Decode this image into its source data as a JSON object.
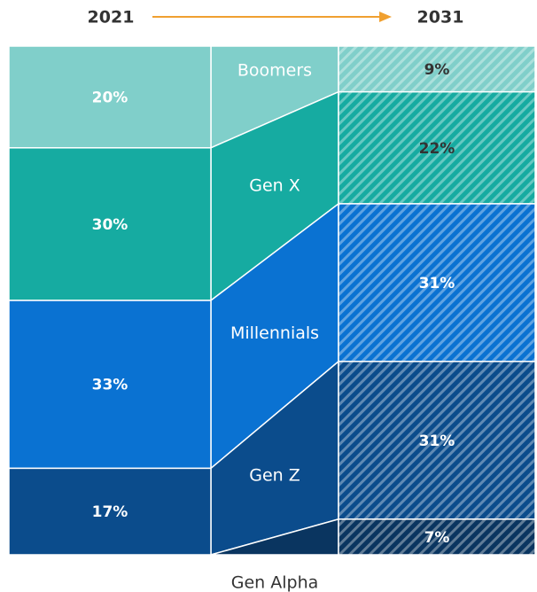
{
  "chart_data": {
    "type": "flow",
    "categories": [
      "2021",
      "2031"
    ],
    "series": [
      {
        "name": "Boomers",
        "color": "#80cfca",
        "values": [
          20,
          9
        ],
        "value_labels": [
          "20%",
          "9%"
        ],
        "label_color": [
          "#ffffff",
          "#333333"
        ]
      },
      {
        "name": "Gen X",
        "color": "#16aba1",
        "values": [
          30,
          22
        ],
        "value_labels": [
          "30%",
          "22%"
        ],
        "label_color": [
          "#ffffff",
          "#333333"
        ]
      },
      {
        "name": "Millennials",
        "color": "#0a72d2",
        "values": [
          33,
          31
        ],
        "value_labels": [
          "33%",
          "31%"
        ],
        "label_color": [
          "#ffffff",
          "#ffffff"
        ]
      },
      {
        "name": "Gen Z",
        "color": "#0b4c8c",
        "values": [
          17,
          31
        ],
        "value_labels": [
          "17%",
          "31%"
        ],
        "label_color": [
          "#ffffff",
          "#ffffff"
        ]
      },
      {
        "name": "Gen Alpha",
        "color": "#0a3560",
        "values": [
          null,
          7
        ],
        "value_labels": [
          null,
          "7%"
        ],
        "label_color": [
          "#ffffff",
          "#ffffff"
        ]
      }
    ],
    "ylim": [
      0,
      100
    ],
    "arrow_color": "#f0a030",
    "hatch_second": true
  }
}
